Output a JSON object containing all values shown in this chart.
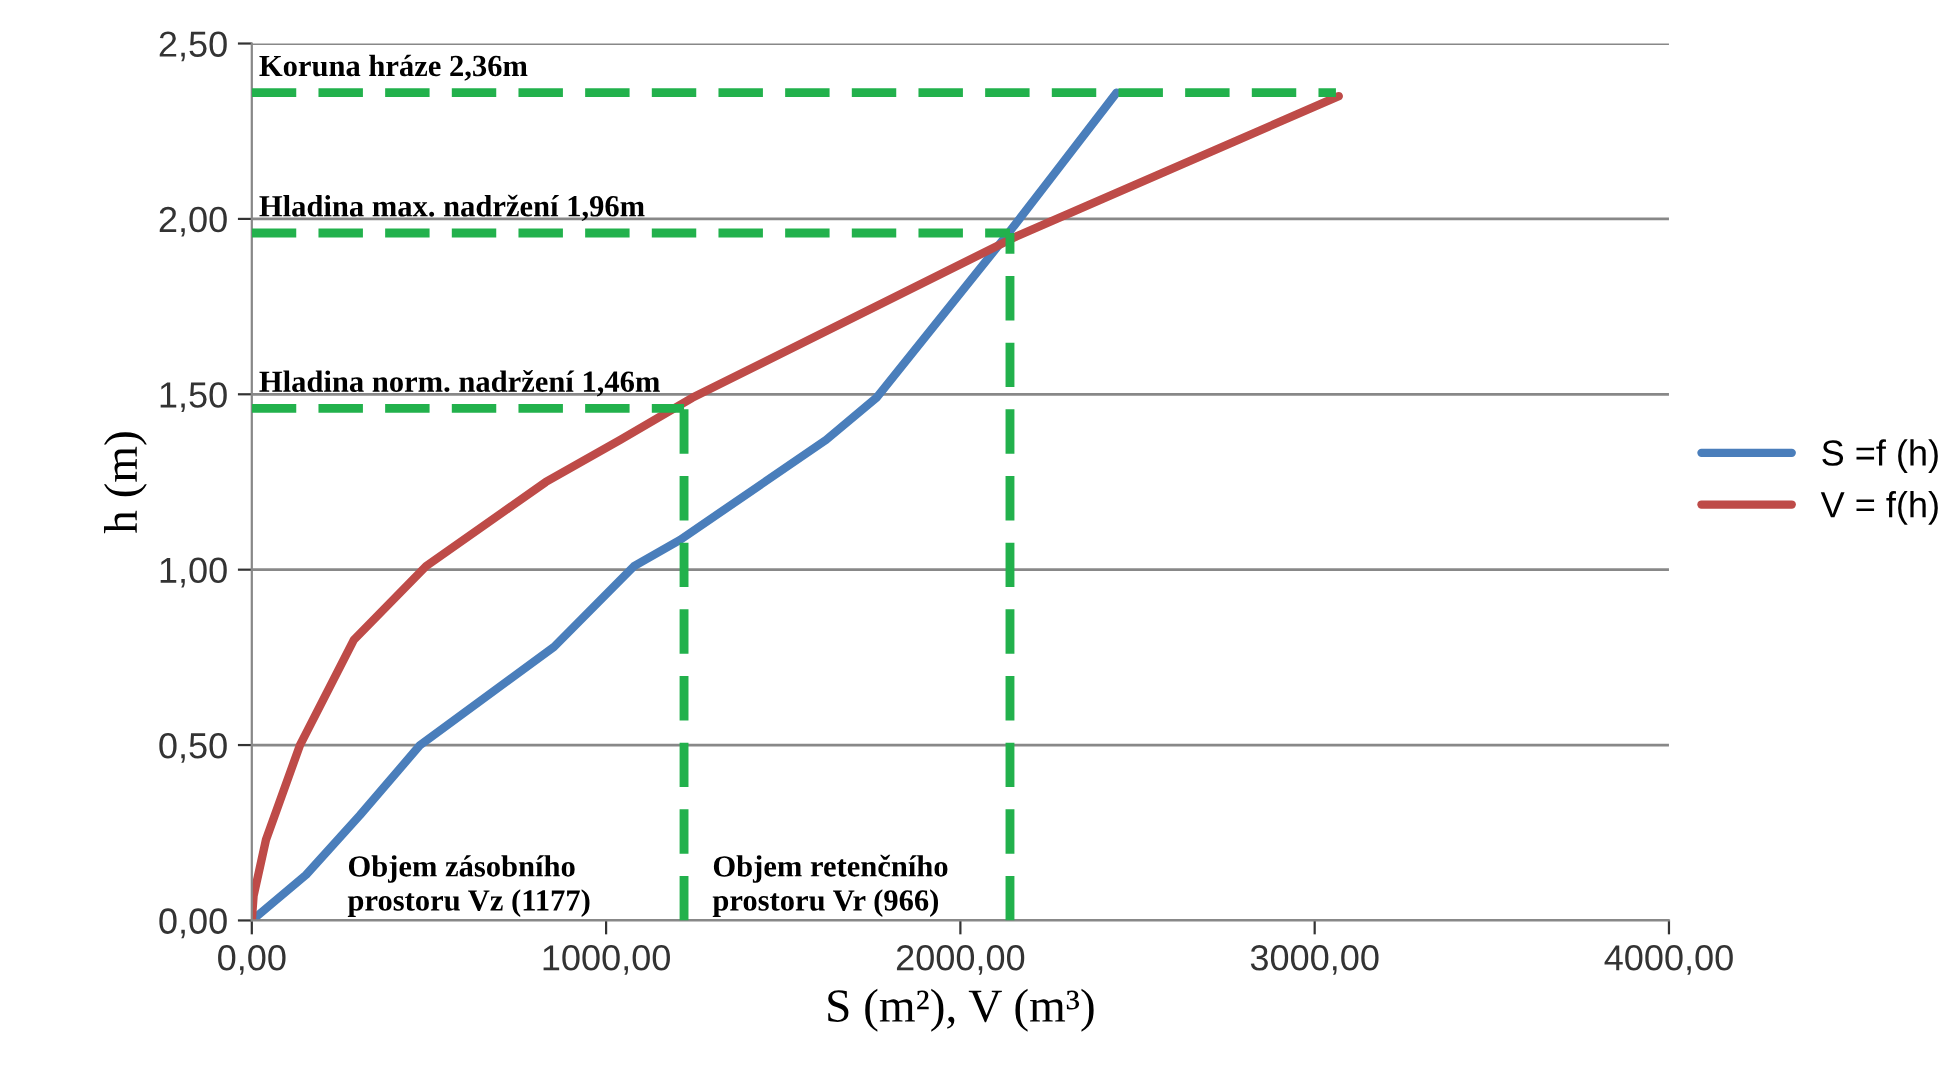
{
  "chart_data": {
    "type": "line",
    "xlabel": "S (m²), V (m³)",
    "ylabel": "h (m)",
    "xlim": [
      0,
      4000
    ],
    "ylim": [
      0,
      2.5
    ],
    "xticks": [
      {
        "value": 0,
        "label": "0,00"
      },
      {
        "value": 1000,
        "label": "1000,00"
      },
      {
        "value": 2000,
        "label": "2000,00"
      },
      {
        "value": 3000,
        "label": "3000,00"
      },
      {
        "value": 4000,
        "label": "4000,00"
      }
    ],
    "yticks": [
      {
        "value": 0,
        "label": "0,00"
      },
      {
        "value": 0.5,
        "label": "0,50"
      },
      {
        "value": 1,
        "label": "1,00"
      },
      {
        "value": 1.5,
        "label": "1,50"
      },
      {
        "value": 2,
        "label": "2,00"
      },
      {
        "value": 2.5,
        "label": "2,50"
      }
    ],
    "grid": "y",
    "legend": "right",
    "marker": "none",
    "series": [
      {
        "name": "S =f (h)",
        "color": "#4a7ebb",
        "line_style": "solid",
        "x": [
          0,
          153,
          305,
          475,
          853,
          1079,
          1209,
          1621,
          1763,
          2136,
          2266,
          2441
        ],
        "values": [
          0,
          0.13,
          0.3,
          0.5,
          0.78,
          1.01,
          1.085,
          1.37,
          1.49,
          1.96,
          2.13,
          2.36
        ]
      },
      {
        "name": "V = f(h)",
        "color": "#be4b48",
        "line_style": "solid",
        "x": [
          0,
          5,
          40,
          136,
          288,
          492,
          830,
          1040,
          1243,
          2158,
          3068
        ],
        "values": [
          0,
          0.07,
          0.23,
          0.5,
          0.8,
          1.01,
          1.25,
          1.37,
          1.49,
          1.95,
          2.35
        ]
      },
      {
        "color": "#22b14c",
        "line_style": "dashed",
        "x": [
          0,
          3060
        ],
        "values": [
          2.36,
          2.36
        ]
      },
      {
        "color": "#22b14c",
        "line_style": "dashed",
        "x": [
          0,
          2140
        ],
        "values": [
          1.96,
          1.96
        ]
      },
      {
        "color": "#22b14c",
        "line_style": "dashed",
        "x": [
          0,
          1220
        ],
        "values": [
          1.46,
          1.46
        ]
      },
      {
        "color": "#22b14c",
        "line_style": "dashed",
        "x": [
          1220,
          1220
        ],
        "values": [
          0,
          1.46
        ]
      },
      {
        "color": "#22b14c",
        "line_style": "dashed",
        "x": [
          2140,
          2140
        ],
        "values": [
          0,
          1.96
        ]
      }
    ],
    "annotations": [
      {
        "text": "Koruna hráze 2,36m",
        "y": 2.36
      },
      {
        "text": "Hladina max. nadržení 1,96m",
        "y": 1.96
      },
      {
        "text": "Hladina norm. nadržení 1,46m",
        "y": 1.46
      },
      "Objem zásobního\nprostoru Vz (1177)",
      "Objem retenčního\nprostoru Vr (966)"
    ]
  }
}
